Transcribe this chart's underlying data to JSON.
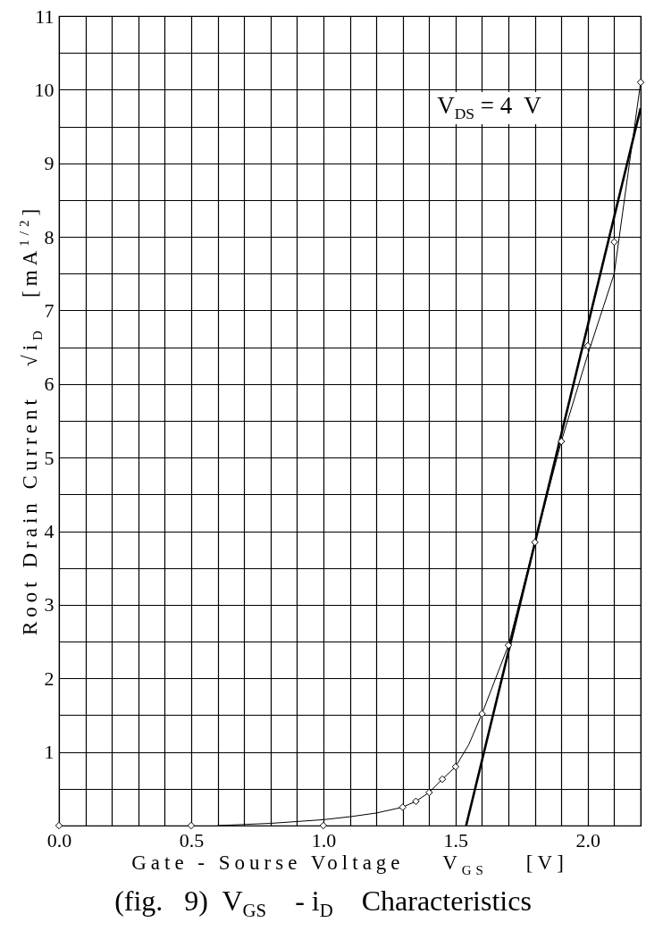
{
  "chart_data": {
    "type": "line",
    "title": "(fig.   9)  V$_{GS}$    - i$_{D}$    Characteristics",
    "xlabel": "Gate - Sourse Voltage    V$_{GS}$    [V]",
    "ylabel": "Root Drain Current   √i$_{D}$   [mA$^{1/2}$]",
    "annotations": [
      "V$_{DS}$ = 4  V"
    ],
    "xlim": [
      0,
      2.2
    ],
    "ylim": [
      0,
      11
    ],
    "xticks": [
      {
        "value": 0,
        "label": "0.0"
      },
      {
        "value": 0.1,
        "label": null
      },
      {
        "value": 0.2,
        "label": null
      },
      {
        "value": 0.3,
        "label": null
      },
      {
        "value": 0.4,
        "label": null
      },
      {
        "value": 0.5,
        "label": "0.5"
      },
      {
        "value": 0.6,
        "label": null
      },
      {
        "value": 0.7,
        "label": null
      },
      {
        "value": 0.8,
        "label": null
      },
      {
        "value": 0.9,
        "label": null
      },
      {
        "value": 1,
        "label": "1.0"
      },
      {
        "value": 1.1,
        "label": null
      },
      {
        "value": 1.2,
        "label": null
      },
      {
        "value": 1.3,
        "label": null
      },
      {
        "value": 1.4,
        "label": null
      },
      {
        "value": 1.5,
        "label": "1.5"
      },
      {
        "value": 1.6,
        "label": null
      },
      {
        "value": 1.7,
        "label": null
      },
      {
        "value": 1.8,
        "label": null
      },
      {
        "value": 1.9,
        "label": null
      },
      {
        "value": 2,
        "label": "2.0"
      },
      {
        "value": 2.1,
        "label": null
      },
      {
        "value": 2.2,
        "label": null
      }
    ],
    "yticks": [
      {
        "value": 0,
        "label": null
      },
      {
        "value": 0.5,
        "label": null
      },
      1,
      {
        "value": 1.5,
        "label": null
      },
      2,
      {
        "value": 2.5,
        "label": null
      },
      3,
      {
        "value": 3.5,
        "label": null
      },
      4,
      {
        "value": 4.5,
        "label": null
      },
      5,
      {
        "value": 5.5,
        "label": null
      },
      6,
      {
        "value": 6.5,
        "label": null
      },
      7,
      {
        "value": 7.5,
        "label": null
      },
      8,
      {
        "value": 8.5,
        "label": null
      },
      9,
      {
        "value": 9.5,
        "label": null
      },
      10,
      {
        "value": 10.5,
        "label": null
      },
      11
    ],
    "grid": true,
    "line_style": "solid",
    "series": [
      {
        "type": "scatter",
        "marker": "diamond",
        "color": "#000000",
        "x": [
          0,
          0.5,
          1.0,
          1.3,
          1.35,
          1.4,
          1.45,
          1.5,
          1.6,
          1.7,
          1.8,
          1.9,
          2.0,
          2.1,
          2.2
        ],
        "values": [
          0,
          0,
          0,
          0.25,
          0.33,
          0.45,
          0.63,
          0.8,
          1.52,
          2.45,
          3.85,
          5.22,
          6.52,
          7.93,
          10.1
        ]
      },
      {
        "marker": "none",
        "color": "#000000",
        "x": [
          0.6,
          0.8,
          1.0,
          1.1,
          1.2,
          1.3,
          1.35,
          1.4,
          1.45,
          1.5,
          1.55,
          1.6,
          1.7,
          1.8,
          1.9,
          2.0,
          2.1,
          2.2
        ],
        "values": [
          0,
          0.03,
          0.08,
          0.12,
          0.17,
          0.25,
          0.33,
          0.45,
          0.63,
          0.8,
          1.1,
          1.52,
          2.45,
          3.85,
          5.22,
          6.4,
          7.5,
          10.1
        ]
      },
      {
        "marker": "none",
        "color": "#000000",
        "x": [
          1.54,
          2.2
        ],
        "values": [
          0,
          9.75
        ]
      }
    ]
  }
}
